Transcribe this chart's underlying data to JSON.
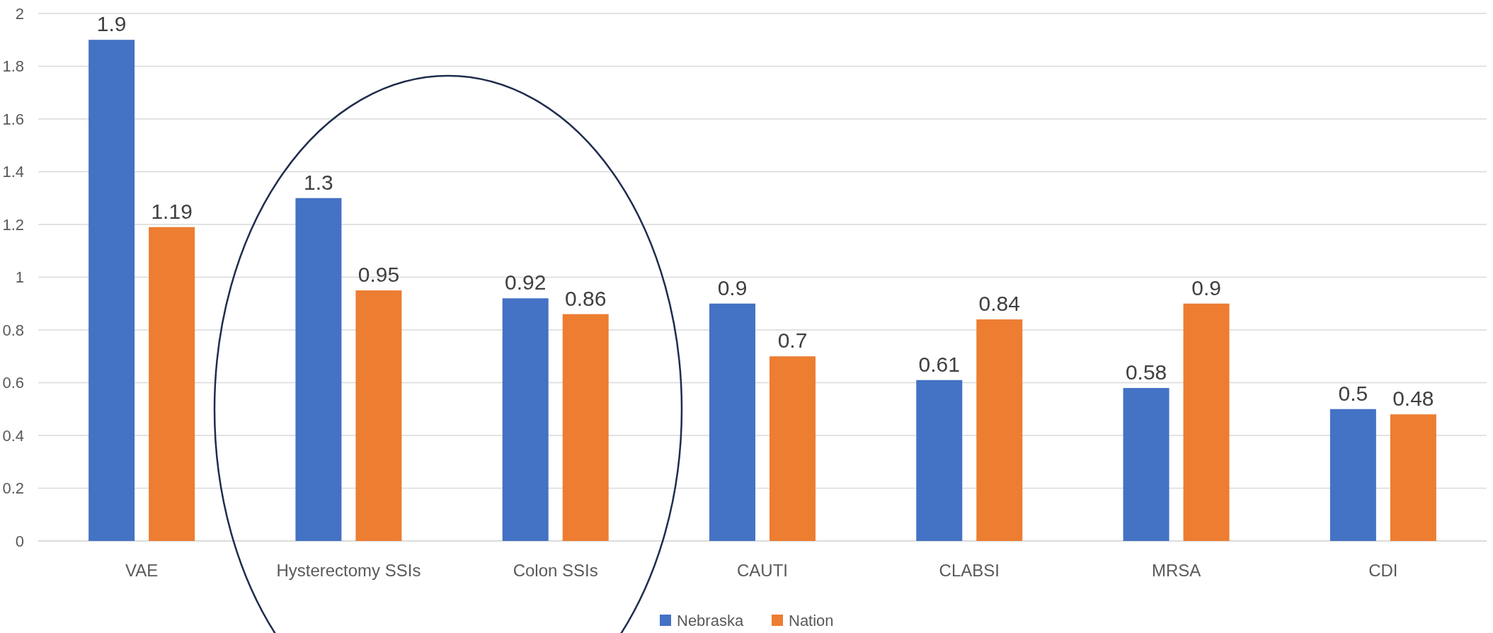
{
  "chart_data": {
    "type": "bar",
    "categories": [
      "VAE",
      "Hysterectomy SSIs",
      "Colon SSIs",
      "CAUTI",
      "CLABSI",
      "MRSA",
      "CDI"
    ],
    "series": [
      {
        "name": "Nebraska",
        "color": "#4472c4",
        "values": [
          1.9,
          1.3,
          0.92,
          0.9,
          0.61,
          0.58,
          0.5
        ]
      },
      {
        "name": "Nation",
        "color": "#ed7d31",
        "values": [
          1.19,
          0.95,
          0.86,
          0.7,
          0.84,
          0.9,
          0.48
        ]
      }
    ],
    "ylim": [
      0,
      2
    ],
    "yticks": [
      0,
      0.2,
      0.4,
      0.6,
      0.8,
      1,
      1.2,
      1.4,
      1.6,
      1.8,
      2
    ],
    "grid": "y",
    "legend": "bottom",
    "data_labels": true
  }
}
